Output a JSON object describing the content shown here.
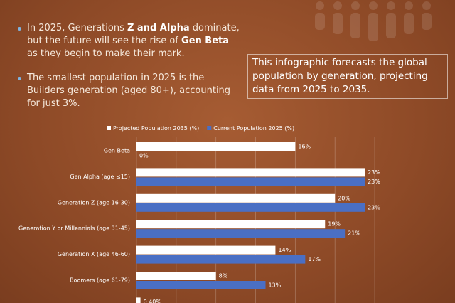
{
  "bullets": [
    {
      "parts": [
        {
          "text": "In 2025, Generations "
        },
        {
          "text": "Z and Alpha",
          "bold": true
        },
        {
          "text": " dominate, but the future will see the rise of "
        },
        {
          "text": "Gen Beta",
          "bold": true
        },
        {
          "text": " as they begin to make their mark."
        }
      ]
    },
    {
      "parts": [
        {
          "text": "The smallest population in 2025 is the Builders generation (aged 80+), accounting for just 3%."
        }
      ]
    }
  ],
  "note": "This infographic forecasts the global population by generation, projecting data from 2025 to 2035.",
  "chart_data": {
    "type": "hbar",
    "categories": [
      "Gen Beta",
      "Gen Alpha (age ≤15)",
      "Generation Z (age 16-30)",
      "Generation Y or Millennials (age 31-45)",
      "Generation X (age 46-60)",
      "Boomers (age 61-79)",
      null
    ],
    "series": [
      {
        "name": "Projected Population 2035 (%)",
        "color": "#ffffff",
        "values": [
          16,
          23,
          20,
          19,
          14,
          8,
          0.4
        ],
        "value_labels": [
          "16%",
          "23%",
          "20%",
          "19%",
          "14%",
          "8%",
          "0.40%"
        ]
      },
      {
        "name": "Current Population 2025 (%)",
        "color": "#4a6fc4",
        "values": [
          0,
          23,
          23,
          21,
          17,
          13,
          null
        ],
        "value_labels": [
          "0%",
          "23%",
          "23%",
          "21%",
          "17%",
          "13%",
          null
        ]
      }
    ],
    "xlim": [
      0,
      25
    ],
    "xticks": [
      0,
      4,
      8,
      12,
      16,
      20,
      24
    ],
    "grid": true,
    "legend": "top"
  }
}
